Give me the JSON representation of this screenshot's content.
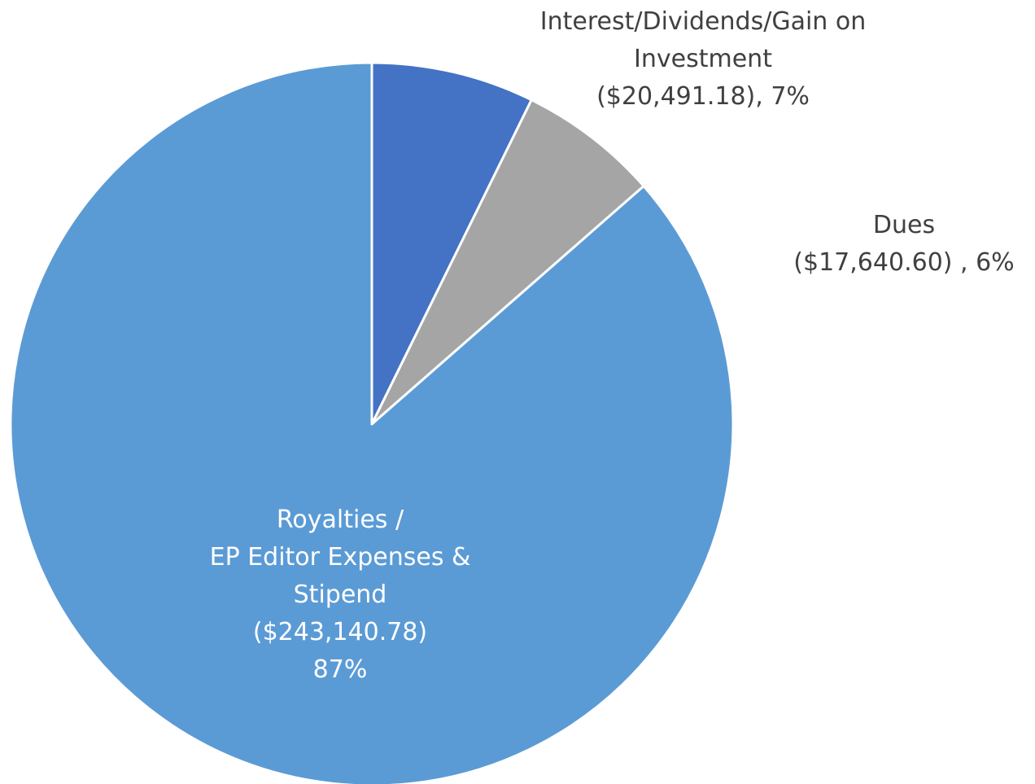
{
  "chart_data": {
    "type": "pie",
    "start_angle_deg": 0,
    "direction": "clockwise",
    "slices": [
      {
        "value": 20491.18,
        "percent": 7,
        "color": "#4472C4",
        "label_lines": [
          "Interest/Dividends/Gain on",
          "Investment",
          "($20,491.18), 7%"
        ],
        "label_position": "outside-top"
      },
      {
        "value": 17640.6,
        "percent": 6,
        "color": "#A5A5A5",
        "label_lines": [
          "Dues",
          "($17,640.60) , 6%"
        ],
        "label_position": "outside-right"
      },
      {
        "value": 243140.78,
        "percent": 87,
        "color": "#5B9BD5",
        "label_lines": [
          "Royalties /",
          "EP Editor Expenses &",
          "Stipend",
          "($243,140.78)",
          "87%"
        ],
        "label_position": "inside"
      }
    ]
  }
}
